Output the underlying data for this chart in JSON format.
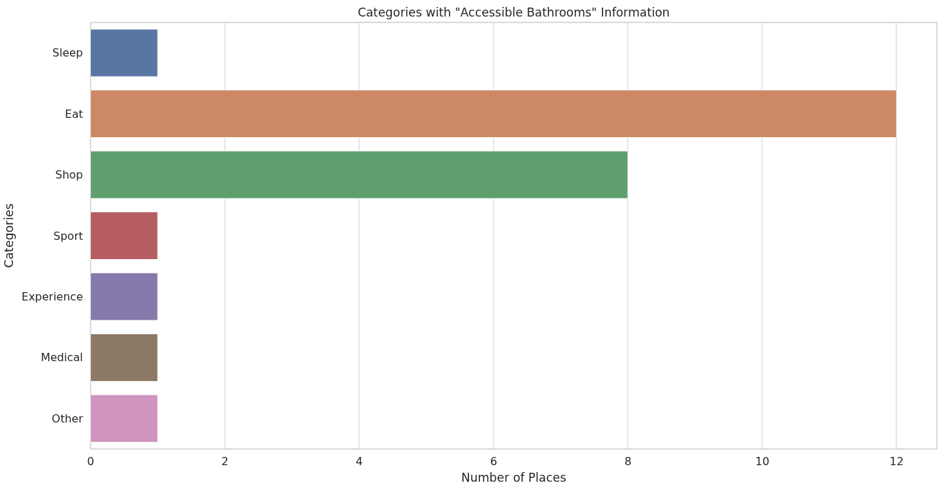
{
  "chart_data": {
    "type": "bar",
    "orientation": "horizontal",
    "title": "Categories with \"Accessible Bathrooms\" Information",
    "xlabel": "Number of Places",
    "ylabel": "Categories",
    "categories": [
      "Sleep",
      "Eat",
      "Shop",
      "Sport",
      "Experience",
      "Medical",
      "Other"
    ],
    "values": [
      1,
      12,
      8,
      1,
      1,
      1,
      1
    ],
    "colors": [
      "#5975a4",
      "#cc8963",
      "#5f9e6e",
      "#b55d60",
      "#857aab",
      "#8d7866",
      "#d095bf"
    ],
    "xlim": [
      0,
      12.6
    ],
    "xticks": [
      0,
      2,
      4,
      6,
      8,
      10,
      12
    ],
    "grid": "x"
  }
}
